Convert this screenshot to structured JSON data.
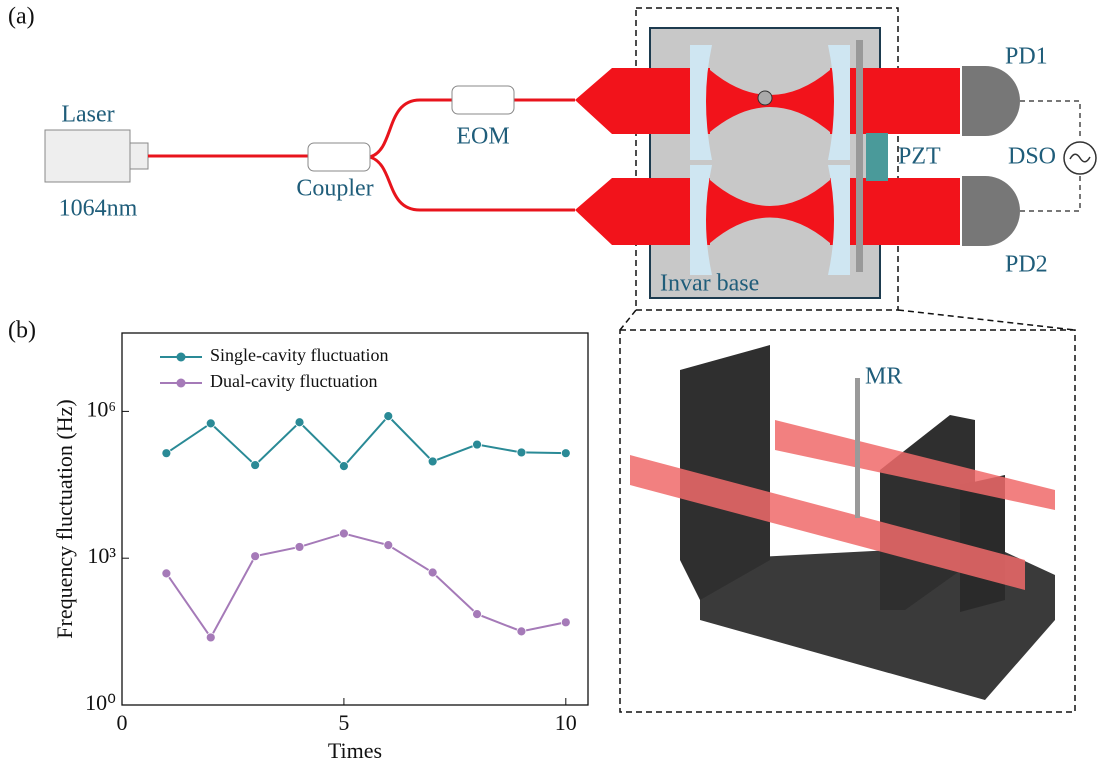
{
  "diagram": {
    "panel_a": "(a)",
    "panel_b": "(b)",
    "laser": "Laser",
    "wavelength": "1064nm",
    "coupler": "Coupler",
    "eom": "EOM",
    "pd1": "PD1",
    "pd2": "PD2",
    "dso": "DSO",
    "pzt": "PZT",
    "base": "Invar base",
    "mr": "MR"
  },
  "chart_data": {
    "type": "line",
    "x_label": "Times",
    "y_label": "Frequency fluctuation (Hz)",
    "x": [
      1,
      2,
      3,
      4,
      5,
      6,
      7,
      8,
      9,
      10
    ],
    "series": [
      {
        "name": "Single-cavity fluctuation",
        "color": "#2a8a96",
        "values": [
          140000,
          570000,
          80000,
          600000,
          76000,
          800000,
          95000,
          210000,
          145000,
          140000
        ]
      },
      {
        "name": "Dual-cavity fluctuation",
        "color": "#a57ab8",
        "values": [
          490,
          24,
          1100,
          1700,
          3200,
          1850,
          510,
          72,
          32,
          49
        ]
      }
    ],
    "xlim": [
      0,
      10.5
    ],
    "xticks": [
      0,
      5,
      10
    ],
    "ylim": [
      1,
      40000000
    ],
    "log_y": true,
    "yticks": [
      {
        "value": 1,
        "label": "10⁰"
      },
      {
        "value": 1000,
        "label": "10³"
      },
      {
        "value": 1000000,
        "label": "10⁶"
      }
    ],
    "legend": "upper left",
    "grid": false
  }
}
